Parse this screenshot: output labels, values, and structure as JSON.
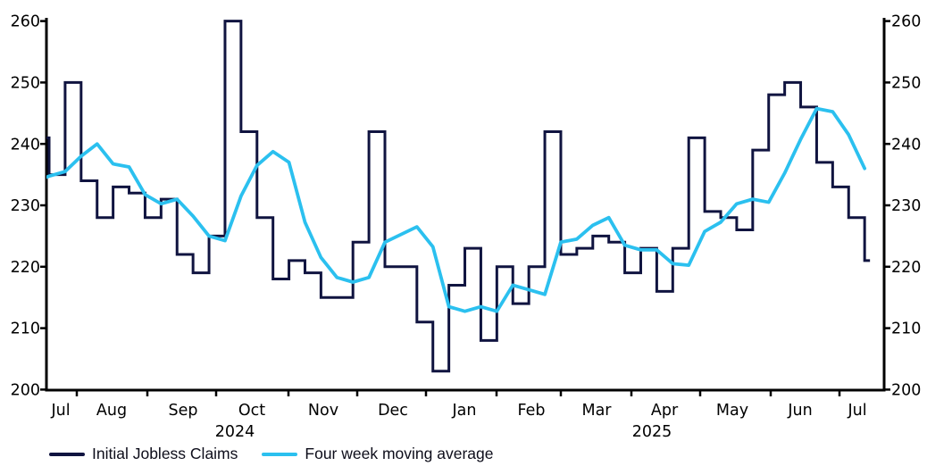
{
  "chart_data": {
    "type": "line",
    "title": "",
    "frequency": "weekly",
    "x_range": [
      "Jul 2024",
      "Jul 2025"
    ],
    "grid": false,
    "legend_position": "bottom-left",
    "y_axis": {
      "min": 200,
      "max": 260,
      "tick_step": 10,
      "ticks": [
        200,
        210,
        220,
        230,
        240,
        250,
        260
      ],
      "sides": [
        "left",
        "right"
      ]
    },
    "x_axis": {
      "month_labels": [
        "Jul",
        "Aug",
        "Sep",
        "Oct",
        "Nov",
        "Dec",
        "Jan",
        "Feb",
        "Mar",
        "Apr",
        "May",
        "Jun",
        "Jul"
      ],
      "year_labels": [
        "2024",
        "2025"
      ]
    },
    "series": [
      {
        "name": "Initial Jobless Claims",
        "style": "step",
        "color": "#101440",
        "week_ending": [
          "13 Jul 2024",
          "20 Jul 2024",
          "27 Jul 2024",
          "3 Aug 2024",
          "10 Aug 2024",
          "17 Aug 2024",
          "24 Aug 2024",
          "31 Aug 2024",
          "7 Sep 2024",
          "14 Sep 2024",
          "21 Sep 2024",
          "28 Sep 2024",
          "5 Oct 2024",
          "12 Oct 2024",
          "19 Oct 2024",
          "26 Oct 2024",
          "2 Nov 2024",
          "9 Nov 2024",
          "16 Nov 2024",
          "23 Nov 2024",
          "30 Nov 2024",
          "7 Dec 2024",
          "14 Dec 2024",
          "21 Dec 2024",
          "28 Dec 2024",
          "4 Jan 2025",
          "11 Jan 2025",
          "18 Jan 2025",
          "25 Jan 2025",
          "1 Feb 2025",
          "8 Feb 2025",
          "15 Feb 2025",
          "22 Feb 2025",
          "1 Mar 2025",
          "8 Mar 2025",
          "15 Mar 2025",
          "22 Mar 2025",
          "29 Mar 2025",
          "5 Apr 2025",
          "12 Apr 2025",
          "19 Apr 2025",
          "26 Apr 2025",
          "3 May 2025",
          "10 May 2025",
          "17 May 2025",
          "24 May 2025",
          "31 May 2025",
          "7 Jun 2025",
          "14 Jun 2025",
          "21 Jun 2025",
          "28 Jun 2025",
          "5 Jul 2025",
          "12 Jul 2025"
        ],
        "values": [
          241,
          235,
          250,
          234,
          228,
          233,
          232,
          228,
          231,
          222,
          219,
          225,
          260,
          242,
          228,
          218,
          221,
          219,
          215,
          215,
          224,
          242,
          220,
          220,
          211,
          203,
          217,
          223,
          208,
          220,
          214,
          220,
          242,
          222,
          223,
          225,
          224,
          219,
          223,
          216,
          223,
          241,
          229,
          228,
          226,
          239,
          248,
          250,
          246,
          237,
          233,
          228,
          221
        ]
      },
      {
        "name": "Four week moving average",
        "style": "line",
        "color": "#2bc0ef",
        "values": [
          233.75,
          234.75,
          235.5,
          238.0,
          240.0,
          236.75,
          236.25,
          231.75,
          230.25,
          231.0,
          228.25,
          225.0,
          224.25,
          231.5,
          236.5,
          238.75,
          237.0,
          227.25,
          221.5,
          218.25,
          217.5,
          218.25,
          224.0,
          225.25,
          226.5,
          223.25,
          213.5,
          212.75,
          213.5,
          212.75,
          217.0,
          216.25,
          215.5,
          224.0,
          224.5,
          226.75,
          228.0,
          223.5,
          222.75,
          222.75,
          220.5,
          220.25,
          225.75,
          227.25,
          230.25,
          231.0,
          230.5,
          235.25,
          240.75,
          245.75,
          245.25,
          241.5,
          236.0
        ]
      }
    ]
  },
  "legend": {
    "items": [
      {
        "label": "Initial Jobless Claims",
        "color": "#101440"
      },
      {
        "label": "Four week moving average",
        "color": "#2bc0ef"
      }
    ]
  }
}
